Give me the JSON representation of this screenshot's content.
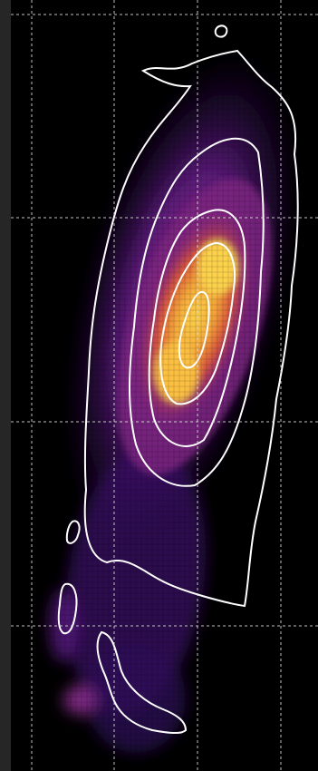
{
  "image": {
    "kind": "astronomical-intensity-map",
    "colormap": "inferno",
    "colors": {
      "frame": "#262626",
      "background": "#000000",
      "low": "#3d1470",
      "mid": "#8c2a7a",
      "high": "#e2632f",
      "peak": "#fbd34a",
      "contour": "#ffffff",
      "grid": "#d8d8d8"
    },
    "grid": {
      "style": "dashed",
      "visible": true
    },
    "contours": {
      "levels": 5,
      "color": "white"
    }
  }
}
